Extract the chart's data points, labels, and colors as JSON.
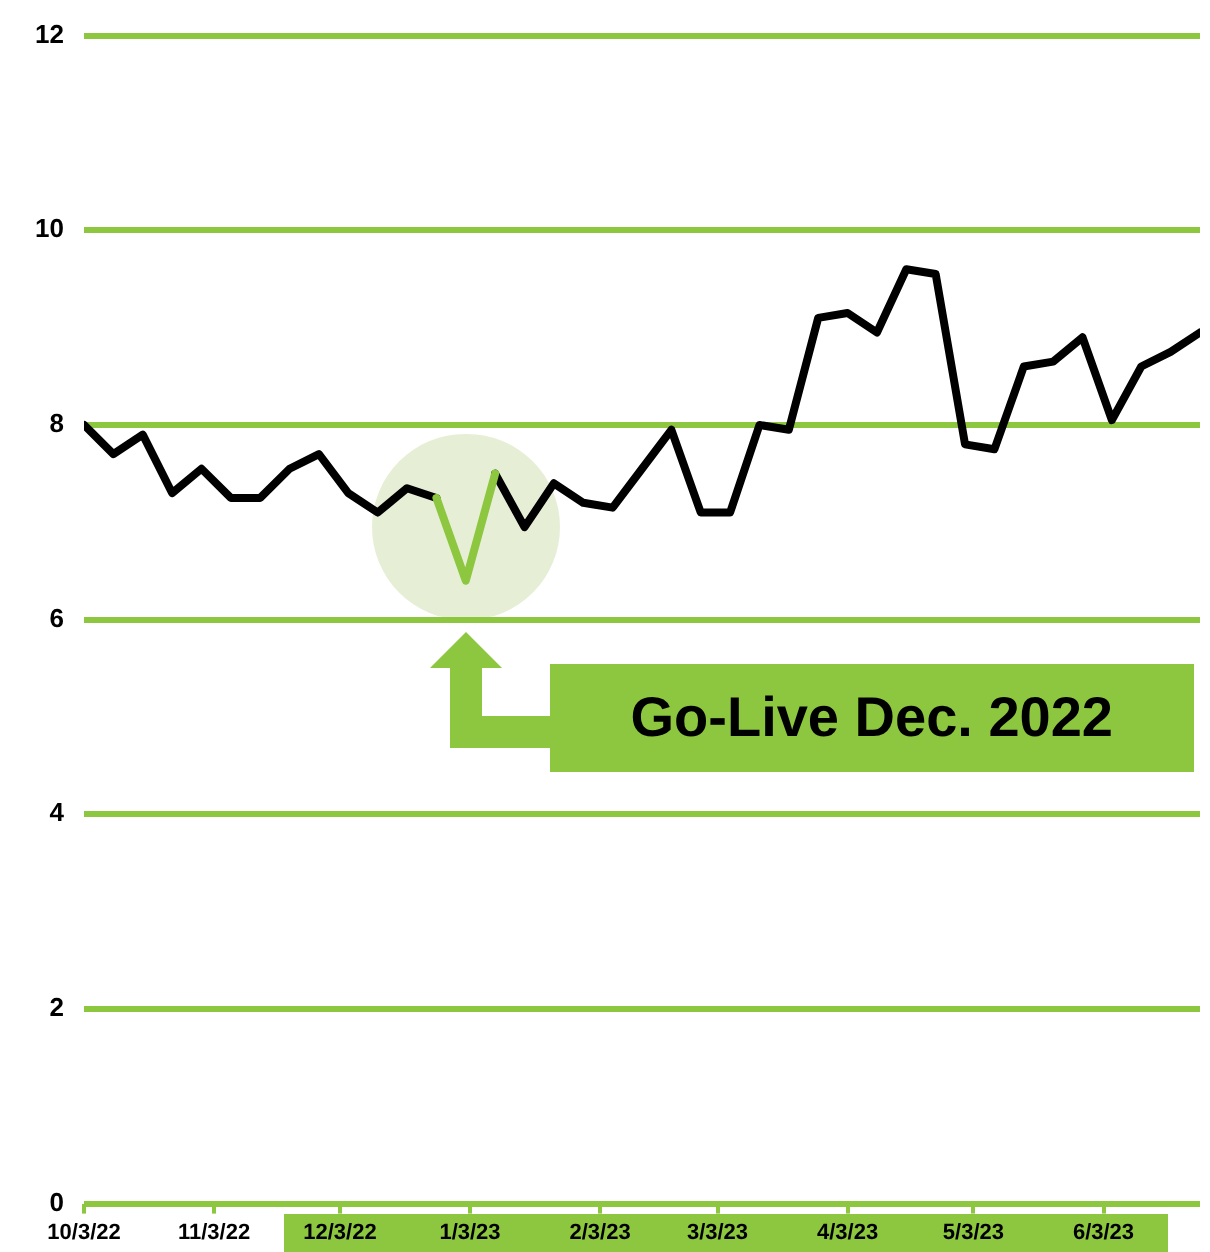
{
  "chart_data": {
    "type": "line",
    "x": [
      "2022-10-03",
      "2022-10-10",
      "2022-10-17",
      "2022-10-24",
      "2022-10-31",
      "2022-11-07",
      "2022-11-14",
      "2022-11-21",
      "2022-11-28",
      "2022-12-05",
      "2022-12-12",
      "2022-12-19",
      "2022-12-26",
      "2023-01-02",
      "2023-01-09",
      "2023-01-16",
      "2023-01-23",
      "2023-01-30",
      "2023-02-06",
      "2023-02-13",
      "2023-02-20",
      "2023-02-27",
      "2023-03-06",
      "2023-03-13",
      "2023-03-20",
      "2023-03-27",
      "2023-04-03",
      "2023-04-10",
      "2023-04-17",
      "2023-04-24",
      "2023-05-01",
      "2023-05-08",
      "2023-05-15",
      "2023-05-22",
      "2023-05-29",
      "2023-06-05",
      "2023-06-12",
      "2023-06-19",
      "2023-06-26"
    ],
    "series": [
      {
        "color": "#000000",
        "values": [
          8.0,
          7.7,
          7.9,
          7.3,
          7.55,
          7.25,
          7.25,
          7.55,
          7.7,
          7.3,
          7.1,
          7.35,
          7.25,
          null,
          7.5,
          6.95,
          7.4,
          7.2,
          7.15,
          7.55,
          7.95,
          7.1,
          7.1,
          8.0,
          7.95,
          9.1,
          9.15,
          8.95,
          9.6,
          9.55,
          7.8,
          7.75,
          8.6,
          8.65,
          8.9,
          8.05,
          8.6,
          8.75,
          8.95
        ]
      },
      {
        "color": "#8dc63f",
        "values": [
          null,
          null,
          null,
          null,
          null,
          null,
          null,
          null,
          null,
          null,
          null,
          null,
          7.25,
          6.4,
          7.5,
          null,
          null,
          null,
          null,
          null,
          null,
          null,
          null,
          null,
          null,
          null,
          null,
          null,
          null,
          null,
          null,
          null,
          null,
          null,
          null,
          null,
          null,
          null,
          null
        ]
      }
    ],
    "xlim": [
      "2022-10-03",
      "2023-06-26"
    ],
    "xticks": [
      {
        "value": "2022-10-03",
        "label": "10/3/22"
      },
      {
        "value": "2022-11-03",
        "label": "11/3/22"
      },
      {
        "value": "2022-12-03",
        "label": "12/3/22"
      },
      {
        "value": "2023-01-03",
        "label": "1/3/23"
      },
      {
        "value": "2023-02-03",
        "label": "2/3/23"
      },
      {
        "value": "2023-03-03",
        "label": "3/3/23"
      },
      {
        "value": "2023-04-03",
        "label": "4/3/23"
      },
      {
        "value": "2023-05-03",
        "label": "5/3/23"
      },
      {
        "value": "2023-06-03",
        "label": "6/3/23"
      }
    ],
    "ylim": [
      0,
      12
    ],
    "yticks": [
      0,
      2,
      4,
      6,
      8,
      10,
      12
    ],
    "grid": "y",
    "legend": false,
    "marker": "none",
    "line_style": "solid",
    "annotations": [
      "Go-Live Dec. 2022"
    ]
  }
}
